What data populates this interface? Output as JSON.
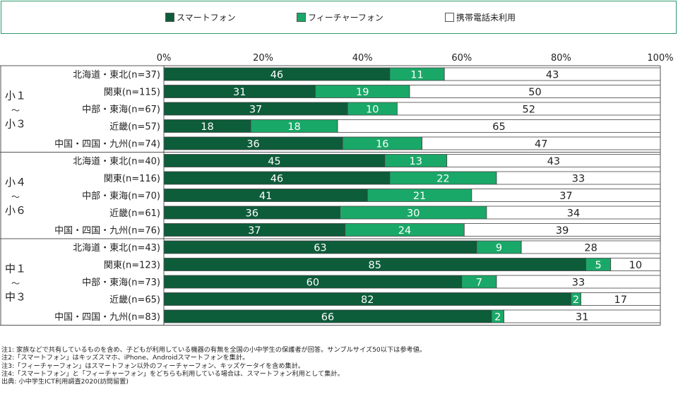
{
  "legend": {
    "items": [
      {
        "label": "スマートフォン",
        "color": "#0d5c3a"
      },
      {
        "label": "フィーチャーフォン",
        "color": "#1aa868"
      },
      {
        "label": "携帯電話未利用",
        "color": "#ffffff"
      }
    ]
  },
  "chart_data": {
    "type": "bar",
    "orientation": "horizontal",
    "stacked": true,
    "title": "",
    "xlabel": "",
    "ylabel": "",
    "xlim": [
      0,
      100
    ],
    "x_ticks": [
      "0%",
      "20%",
      "40%",
      "60%",
      "80%",
      "100%"
    ],
    "legend_position": "top",
    "grid": false,
    "groups": [
      {
        "label": [
          "小１",
          "～",
          "小３"
        ],
        "start": 0,
        "count": 5
      },
      {
        "label": [
          "小４",
          "～",
          "小６"
        ],
        "start": 5,
        "count": 5
      },
      {
        "label": [
          "中１",
          "～",
          "中３"
        ],
        "start": 10,
        "count": 5
      }
    ],
    "categories": [
      "北海道・東北(n=37)",
      "関東(n=115)",
      "中部・東海(n=67)",
      "近畿(n=57)",
      "中国・四国・九州(n=74)",
      "北海道・東北(n=40)",
      "関東(n=116)",
      "中部・東海(n=70)",
      "近畿(n=61)",
      "中国・四国・九州(n=76)",
      "北海道・東北(n=43)",
      "関東(n=123)",
      "中部・東海(n=73)",
      "近畿(n=65)",
      "中国・四国・九州(n=83)"
    ],
    "series": [
      {
        "name": "スマートフォン",
        "color": "#0d5c3a",
        "values": [
          46,
          31,
          37,
          18,
          36,
          45,
          46,
          41,
          36,
          37,
          63,
          85,
          60,
          82,
          66
        ]
      },
      {
        "name": "フィーチャーフォン",
        "color": "#1aa868",
        "values": [
          11,
          19,
          10,
          18,
          16,
          13,
          22,
          21,
          30,
          24,
          9,
          5,
          7,
          2,
          2
        ]
      },
      {
        "name": "携帯電話未利用",
        "color": "#ffffff",
        "values": [
          43,
          50,
          52,
          65,
          47,
          43,
          33,
          37,
          34,
          39,
          28,
          10,
          33,
          17,
          31
        ]
      }
    ],
    "widths": [
      [
        45.5,
        11,
        43.5
      ],
      [
        30.5,
        19,
        50.5
      ],
      [
        37,
        10,
        53
      ],
      [
        17.5,
        17.5,
        65
      ],
      [
        36,
        16,
        48
      ],
      [
        44.5,
        12.5,
        43
      ],
      [
        45.5,
        21.5,
        33
      ],
      [
        41,
        21,
        38
      ],
      [
        35.5,
        29.5,
        35
      ],
      [
        36.5,
        24,
        39.5
      ],
      [
        63,
        9,
        28
      ],
      [
        85,
        5,
        10
      ],
      [
        60,
        7,
        33
      ],
      [
        82,
        2,
        16
      ],
      [
        66,
        2.5,
        31.5
      ]
    ]
  },
  "notes": [
    "注1: 家族などで共有しているものを含め、子どもが利用している機器の有無を全国の小中学生の保護者が回答。サンプルサイズ50以下は参考値。",
    "注2:「スマートフォン」はキッズスマホ、iPhone、Androidスマートフォンを集計。",
    "注3:「フィーチャーフォン」はスマートフォン以外のフィーチャーフォン、キッズケータイを含め集計。",
    "注4:「スマートフォン」と「フィーチャーフォン」をどちらも利用している場合は、スマートフォン利用として集計。",
    "出典: 小中学生ICT利用調査2020(訪問留置)"
  ]
}
